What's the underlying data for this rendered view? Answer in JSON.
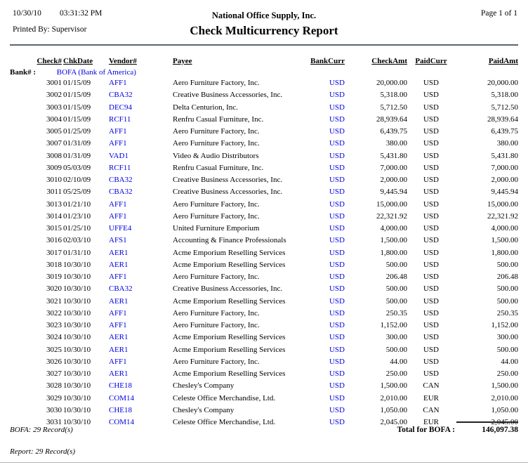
{
  "header": {
    "date": "10/30/10",
    "time": "03:31:32 PM",
    "printed_by": "Printed By: Supervisor",
    "company": "National Office Supply, Inc.",
    "title": "Check Multicurrency Report",
    "page": "Page 1 of 1"
  },
  "table": {
    "columns": [
      "Check#",
      "ChkDate",
      "Vendor#",
      "Payee",
      "BankCurr",
      "CheckAmt",
      "PaidCurr",
      "PaidAmt"
    ],
    "bank_label": "Bank# :",
    "bank_value": "BOFA (Bank of America)",
    "rows": [
      [
        "3001",
        "01/15/09",
        "AFF1",
        "Aero Furniture Factory, Inc.",
        "USD",
        "20,000.00",
        "USD",
        "20,000.00"
      ],
      [
        "3002",
        "01/15/09",
        "CBA32",
        "Creative Business Accessories, Inc.",
        "USD",
        "5,318.00",
        "USD",
        "5,318.00"
      ],
      [
        "3003",
        "01/15/09",
        "DEC94",
        "Delta Centurion, Inc.",
        "USD",
        "5,712.50",
        "USD",
        "5,712.50"
      ],
      [
        "3004",
        "01/15/09",
        "RCF11",
        "Renfru Casual Furniture, Inc.",
        "USD",
        "28,939.64",
        "USD",
        "28,939.64"
      ],
      [
        "3005",
        "01/25/09",
        "AFF1",
        "Aero Furniture Factory, Inc.",
        "USD",
        "6,439.75",
        "USD",
        "6,439.75"
      ],
      [
        "3007",
        "01/31/09",
        "AFF1",
        "Aero Furniture Factory, Inc.",
        "USD",
        "380.00",
        "USD",
        "380.00"
      ],
      [
        "3008",
        "01/31/09",
        "VAD1",
        "Video & Audio Distributors",
        "USD",
        "5,431.80",
        "USD",
        "5,431.80"
      ],
      [
        "3009",
        "05/03/09",
        "RCF11",
        "Renfru Casual Furniture, Inc.",
        "USD",
        "7,000.00",
        "USD",
        "7,000.00"
      ],
      [
        "3010",
        "02/10/09",
        "CBA32",
        "Creative Business Accessories, Inc.",
        "USD",
        "2,000.00",
        "USD",
        "2,000.00"
      ],
      [
        "3011",
        "05/25/09",
        "CBA32",
        "Creative Business Accessories, Inc.",
        "USD",
        "9,445.94",
        "USD",
        "9,445.94"
      ],
      [
        "3013",
        "01/21/10",
        "AFF1",
        "Aero Furniture Factory, Inc.",
        "USD",
        "15,000.00",
        "USD",
        "15,000.00"
      ],
      [
        "3014",
        "01/23/10",
        "AFF1",
        "Aero Furniture Factory, Inc.",
        "USD",
        "22,321.92",
        "USD",
        "22,321.92"
      ],
      [
        "3015",
        "01/25/10",
        "UFFE4",
        "United Furniture Emporium",
        "USD",
        "4,000.00",
        "USD",
        "4,000.00"
      ],
      [
        "3016",
        "02/03/10",
        "AFS1",
        "Accounting & Finance Professionals",
        "USD",
        "1,500.00",
        "USD",
        "1,500.00"
      ],
      [
        "3017",
        "01/31/10",
        "AER1",
        "Acme Emporium Reselling Services",
        "USD",
        "1,800.00",
        "USD",
        "1,800.00"
      ],
      [
        "3018",
        "10/30/10",
        "AER1",
        "Acme Emporium Reselling Services",
        "USD",
        "500.00",
        "USD",
        "500.00"
      ],
      [
        "3019",
        "10/30/10",
        "AFF1",
        "Aero Furniture Factory, Inc.",
        "USD",
        "206.48",
        "USD",
        "206.48"
      ],
      [
        "3020",
        "10/30/10",
        "CBA32",
        "Creative Business Accessories, Inc.",
        "USD",
        "500.00",
        "USD",
        "500.00"
      ],
      [
        "3021",
        "10/30/10",
        "AER1",
        "Acme Emporium Reselling Services",
        "USD",
        "500.00",
        "USD",
        "500.00"
      ],
      [
        "3022",
        "10/30/10",
        "AFF1",
        "Aero Furniture Factory, Inc.",
        "USD",
        "250.35",
        "USD",
        "250.35"
      ],
      [
        "3023",
        "10/30/10",
        "AFF1",
        "Aero Furniture Factory, Inc.",
        "USD",
        "1,152.00",
        "USD",
        "1,152.00"
      ],
      [
        "3024",
        "10/30/10",
        "AER1",
        "Acme Emporium Reselling Services",
        "USD",
        "300.00",
        "USD",
        "300.00"
      ],
      [
        "3025",
        "10/30/10",
        "AER1",
        "Acme Emporium Reselling Services",
        "USD",
        "500.00",
        "USD",
        "500.00"
      ],
      [
        "3026",
        "10/30/10",
        "AFF1",
        "Aero Furniture Factory, Inc.",
        "USD",
        "44.00",
        "USD",
        "44.00"
      ],
      [
        "3027",
        "10/30/10",
        "AER1",
        "Acme Emporium Reselling Services",
        "USD",
        "250.00",
        "USD",
        "250.00"
      ],
      [
        "3028",
        "10/30/10",
        "CHE18",
        "Chesley's Company",
        "USD",
        "1,500.00",
        "CAN",
        "1,500.00"
      ],
      [
        "3029",
        "10/30/10",
        "COM14",
        "Celeste Office Merchandise, Ltd.",
        "USD",
        "2,010.00",
        "EUR",
        "2,010.00"
      ],
      [
        "3030",
        "10/30/10",
        "CHE18",
        "Chesley's Company",
        "USD",
        "1,050.00",
        "CAN",
        "1,050.00"
      ],
      [
        "3031",
        "10/30/10",
        "COM14",
        "Celeste Office Merchandise, Ltd.",
        "USD",
        "2,045.00",
        "EUR",
        "2,045.00"
      ]
    ]
  },
  "footer": {
    "bank_records": "BOFA: 29 Record(s)",
    "total_label": "Total for BOFA :",
    "total_value": "146,097.38",
    "report_records": "Report: 29 Record(s)"
  },
  "colors": {
    "link_blue": "#0000e0",
    "rule_gray": "#5a6570",
    "text_black": "#000000"
  }
}
